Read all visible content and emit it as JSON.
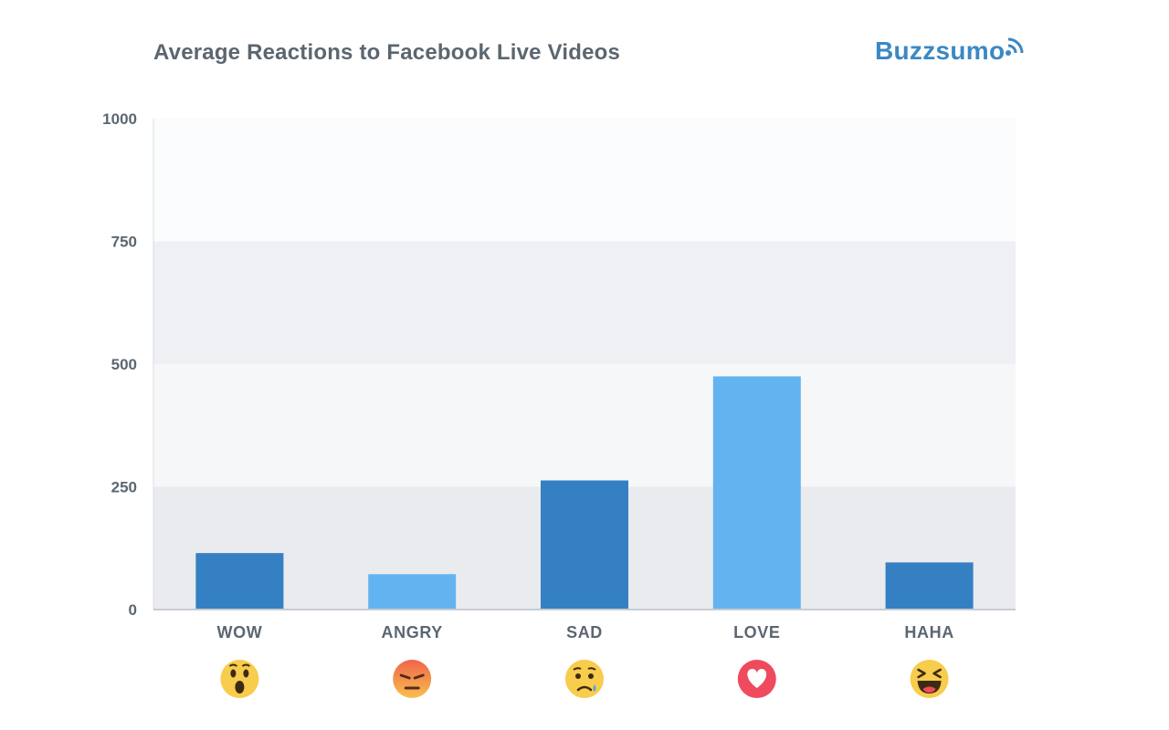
{
  "title": "Average Reactions to Facebook Live Videos",
  "brand": "Buzzsumo",
  "colors": {
    "dark_bar": "#3580c3",
    "light_bar": "#63b3f0",
    "text": "#5c6670",
    "band_a": "#fbfcfd",
    "band_b": "#eff0f3",
    "band_c": "#f6f7f9",
    "band_d": "#e9ebee",
    "brand": "#3b88c4"
  },
  "chart_data": {
    "type": "bar",
    "title": "Average Reactions to Facebook Live Videos",
    "categories": [
      "WOW",
      "ANGRY",
      "SAD",
      "LOVE",
      "HAHA"
    ],
    "values": [
      115,
      72,
      263,
      475,
      96
    ],
    "bar_styles": [
      "dark",
      "light",
      "dark",
      "light",
      "dark"
    ],
    "category_icons": [
      "wow-emoji-icon",
      "angry-emoji-icon",
      "sad-emoji-icon",
      "love-heart-icon",
      "haha-emoji-icon"
    ],
    "ylim": [
      0,
      1000
    ],
    "yticks": [
      0,
      250,
      500,
      750,
      1000
    ],
    "xlabel": "",
    "ylabel": "",
    "grid": "banded"
  }
}
